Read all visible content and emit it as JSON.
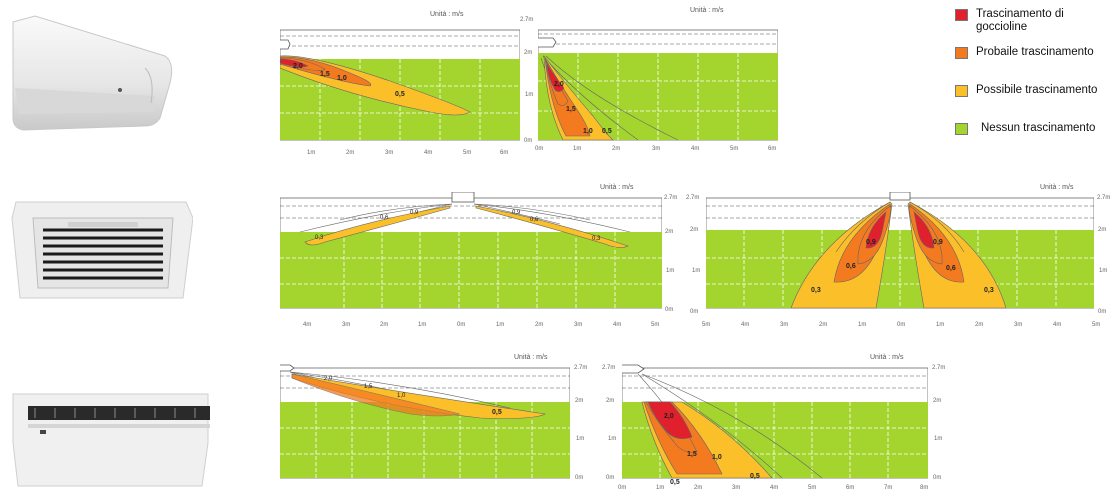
{
  "legend": {
    "items": [
      {
        "label": "Trascinamento di goccioline",
        "color": "#e0202c"
      },
      {
        "label": "Probaile trascinamento",
        "color": "#f47a20"
      },
      {
        "label": "Possibile trascinamento",
        "color": "#fbbf2a"
      },
      {
        "label": "Nessun trascinamento",
        "color": "#a3d52e"
      }
    ]
  },
  "units_label": "Unità : m/s",
  "height_labels": [
    "2.7m",
    "2m",
    "1m",
    "0m"
  ],
  "panels": {
    "wall_side": {
      "x_ticks": [
        "1m",
        "2m",
        "3m",
        "4m",
        "5m",
        "6m"
      ],
      "contour_labels": [
        "2,0",
        "1,5",
        "1,0",
        "0,5"
      ]
    },
    "wall_down": {
      "y_ticks": [
        "2.7m",
        "2m",
        "1m",
        "0m"
      ],
      "x_ticks": [
        "0m",
        "1m",
        "2m",
        "3m",
        "4m",
        "5m",
        "6m"
      ],
      "contour_labels": [
        "2,0",
        "1,5",
        "1,0",
        "0,5"
      ]
    },
    "cassette_side": {
      "right_ticks": [
        "2.7m",
        "2m",
        "1m",
        "0m"
      ],
      "x_ticks": [
        "4m",
        "3m",
        "2m",
        "1m",
        "0m",
        "1m",
        "2m",
        "3m",
        "4m",
        "5m"
      ],
      "contour_labels": [
        "0,9",
        "0,6",
        "0,3",
        "0,9",
        "0,6",
        "0,3"
      ]
    },
    "cassette_down": {
      "y_ticks": [
        "2.7m",
        "2m",
        "1m",
        "0m"
      ],
      "right_ticks": [
        "2.7m",
        "2m",
        "1m",
        "0m"
      ],
      "x_ticks": [
        "5m",
        "4m",
        "3m",
        "2m",
        "1m",
        "0m",
        "1m",
        "2m",
        "3m",
        "4m",
        "5m"
      ],
      "contour_labels": [
        "0,9",
        "0,6",
        "0,3",
        "0,9",
        "0,6",
        "0,3"
      ]
    },
    "ceiling_side": {
      "right_ticks": [
        "2.7m",
        "2m",
        "1m",
        "0m"
      ],
      "contour_labels": [
        "2,0",
        "1,5",
        "1,0",
        "0,5"
      ]
    },
    "ceiling_down": {
      "y_ticks": [
        "2.7m",
        "2m",
        "1m",
        "0m"
      ],
      "right_ticks": [
        "2.7m",
        "2m",
        "1m",
        "0m"
      ],
      "x_ticks": [
        "0m",
        "1m",
        "2m",
        "3m",
        "4m",
        "5m",
        "6m",
        "7m",
        "8m"
      ],
      "contour_labels": [
        "2,0",
        "1,5",
        "1,0",
        "0,5",
        "0,5"
      ]
    }
  }
}
